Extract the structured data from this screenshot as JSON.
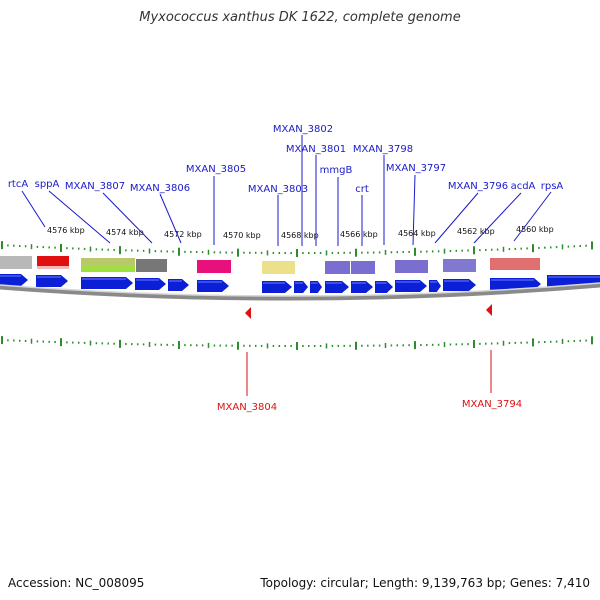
{
  "title": "Myxococcus xanthus DK 1622, complete genome",
  "footer": {
    "accession": "Accession: NC_008095",
    "summary": "Topology: circular; Length: 9,139,763 bp; Genes: 7,410"
  },
  "colors": {
    "gene_label": "#1a1acc",
    "variant_label": "#dd1111",
    "tick": "#2e8b2e",
    "cds_arrow": "#0a1fd6",
    "backbone": "#8a8a8a"
  },
  "kbp_ticks": [
    "4576 kbp",
    "4574 kbp",
    "4572 kbp",
    "4570 kbp",
    "4568 kbp",
    "4566 kbp",
    "4564 kbp",
    "4562 kbp",
    "4560 kbp"
  ],
  "top_labels": [
    "rtcA",
    "sppA",
    "MXAN_3807",
    "MXAN_3806",
    "MXAN_3805",
    "MXAN_3803",
    "MXAN_3802",
    "MXAN_3801",
    "mmgB",
    "crt",
    "MXAN_3798",
    "MXAN_3797",
    "MXAN_3796",
    "acdA",
    "rpsA"
  ],
  "bottom_labels": [
    "MXAN_3804",
    "MXAN_3794"
  ]
}
